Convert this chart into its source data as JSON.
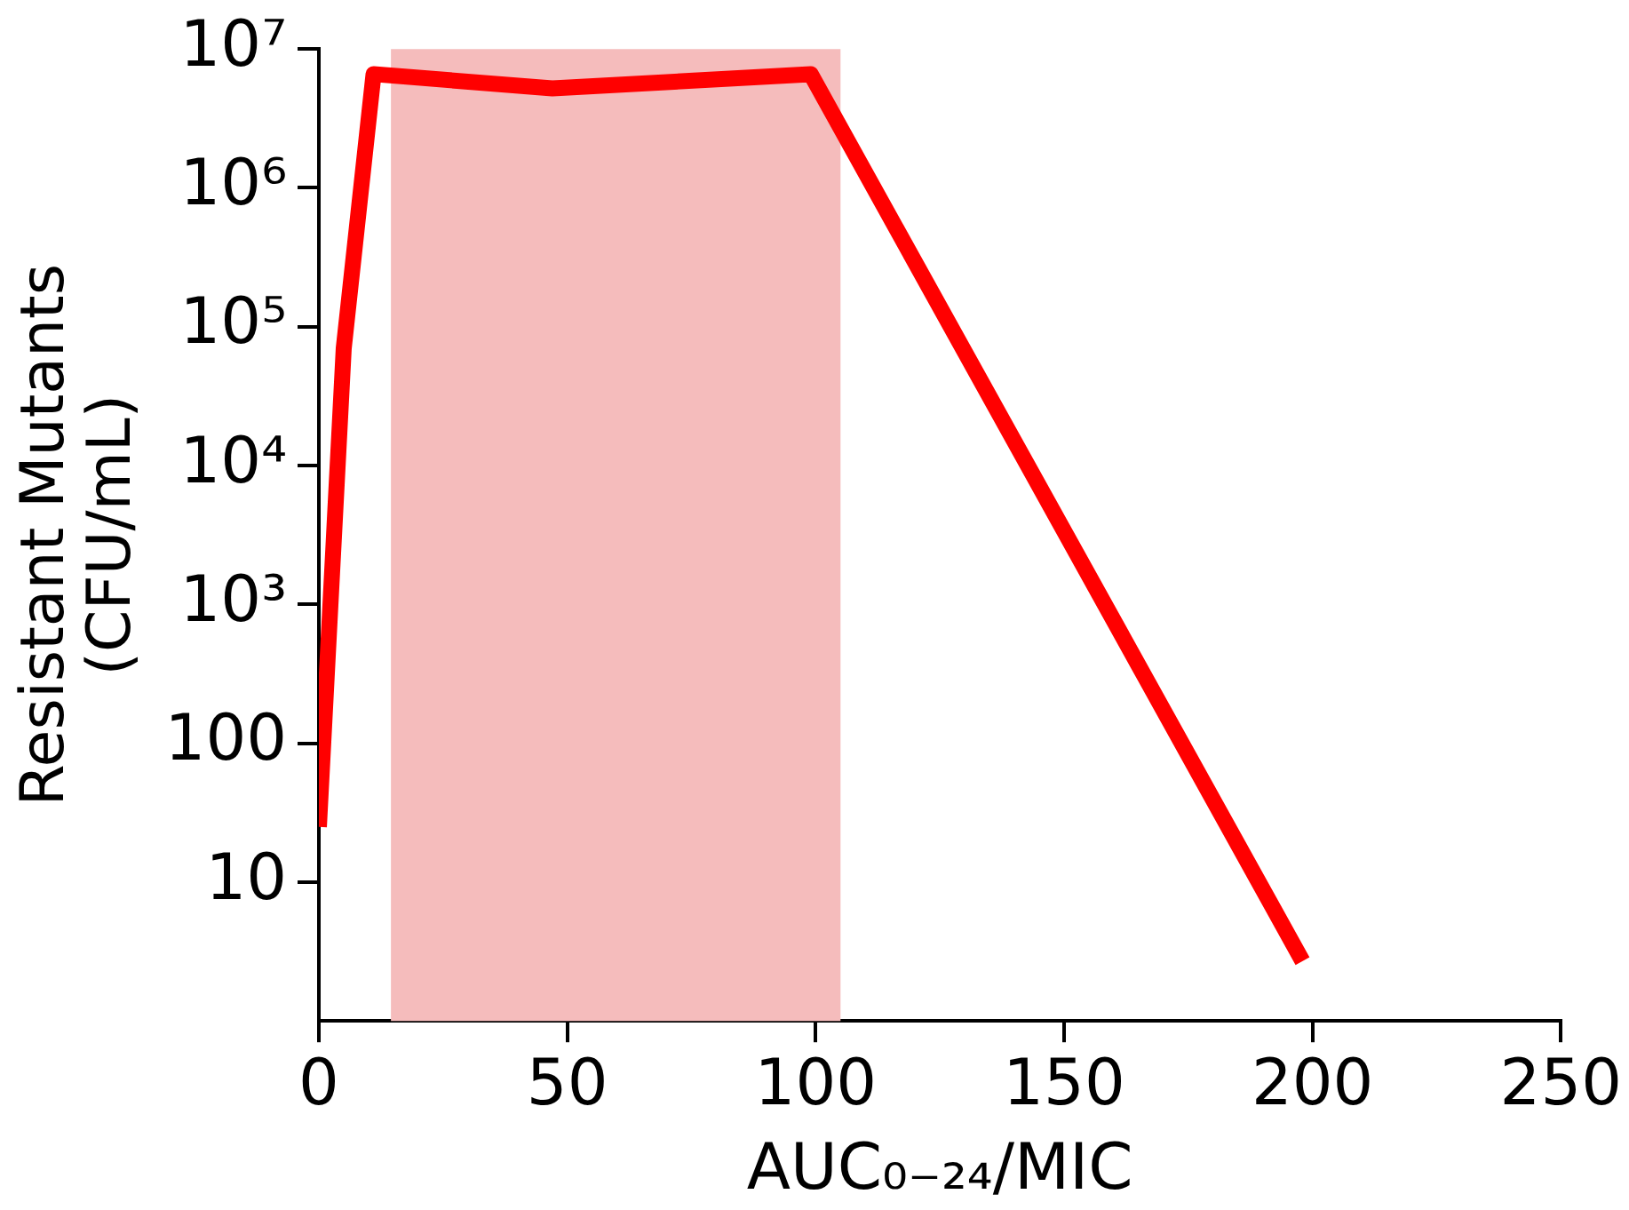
{
  "chart_data": {
    "type": "line",
    "xlabel": "AUC₀₋₂₄/MIC",
    "ylabel": "Resistant Mutants\n(CFU/mL)",
    "x": [
      0,
      5,
      11,
      47,
      99,
      198
    ],
    "series": [
      {
        "color": "#ff0000",
        "values": [
          25,
          70000,
          6600000,
          5200000,
          6600000,
          2.7
        ]
      }
    ],
    "xlim": [
      0,
      250
    ],
    "xticks": [
      0,
      50,
      100,
      150,
      200,
      250
    ],
    "log": "y",
    "ylim": [
      1,
      10000000
    ],
    "yticks": [
      {
        "value": 10,
        "label": "10"
      },
      {
        "value": 100,
        "label": "100"
      },
      {
        "value": 1000,
        "label": "10³"
      },
      {
        "value": 10000,
        "label": "10⁴"
      },
      {
        "value": 100000,
        "label": "10⁵"
      },
      {
        "value": 1000000,
        "label": "10⁶"
      },
      {
        "value": 10000000,
        "label": "10⁷"
      }
    ],
    "bands": [
      {
        "axis": "x",
        "from": 14.5,
        "to": 105,
        "color": "#f5bcbc"
      }
    ],
    "grid": false,
    "legend": false,
    "marker": "none",
    "line_style": "solid"
  }
}
